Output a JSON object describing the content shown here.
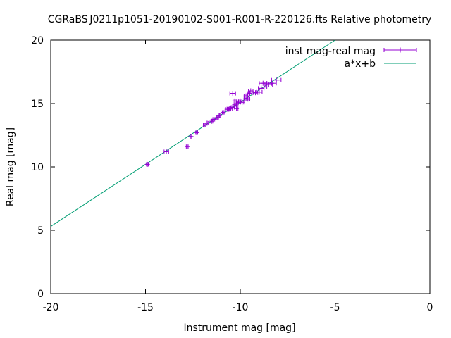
{
  "chart_data": {
    "type": "scatter",
    "title": "CGRaBS J0211p1051-20190102-S001-R001-R-220126.fts Relative photometry",
    "xlabel": "Instrument mag [mag]",
    "ylabel": "Real mag [mag]",
    "xlim": [
      -20,
      0
    ],
    "ylim": [
      0,
      20
    ],
    "xticks": [
      -20,
      -15,
      -10,
      -5,
      0
    ],
    "yticks": [
      0,
      5,
      10,
      15,
      20
    ],
    "xtick_labels": [
      "-20",
      "-15",
      "-10",
      "-5",
      "0"
    ],
    "ytick_labels": [
      "0",
      "5",
      "10",
      "15",
      "20"
    ],
    "grid": false,
    "legend_position": "top-right",
    "series": [
      {
        "name": "inst mag-real mag",
        "kind": "points-with-xerror",
        "color": "#9400d3",
        "points": [
          {
            "x": -14.9,
            "y": 10.2,
            "xerr": 0.05
          },
          {
            "x": -13.9,
            "y": 11.2,
            "xerr": 0.12
          },
          {
            "x": -12.8,
            "y": 11.6,
            "xerr": 0.05
          },
          {
            "x": -12.6,
            "y": 12.4,
            "xerr": 0.05
          },
          {
            "x": -12.3,
            "y": 12.7,
            "xerr": 0.05
          },
          {
            "x": -11.9,
            "y": 13.3,
            "xerr": 0.05
          },
          {
            "x": -11.75,
            "y": 13.45,
            "xerr": 0.05
          },
          {
            "x": -11.5,
            "y": 13.6,
            "xerr": 0.05
          },
          {
            "x": -11.4,
            "y": 13.75,
            "xerr": 0.05
          },
          {
            "x": -11.2,
            "y": 13.9,
            "xerr": 0.05
          },
          {
            "x": -11.1,
            "y": 14.05,
            "xerr": 0.05
          },
          {
            "x": -10.9,
            "y": 14.3,
            "xerr": 0.05
          },
          {
            "x": -10.7,
            "y": 14.55,
            "xerr": 0.08
          },
          {
            "x": -10.6,
            "y": 14.55,
            "xerr": 0.08
          },
          {
            "x": -10.5,
            "y": 14.6,
            "xerr": 0.08
          },
          {
            "x": -10.4,
            "y": 14.7,
            "xerr": 0.08
          },
          {
            "x": -10.3,
            "y": 14.9,
            "xerr": 0.08
          },
          {
            "x": -10.2,
            "y": 15.0,
            "xerr": 0.08
          },
          {
            "x": -10.2,
            "y": 14.6,
            "xerr": 0.08
          },
          {
            "x": -10.3,
            "y": 15.2,
            "xerr": 0.08
          },
          {
            "x": -10.0,
            "y": 15.2,
            "xerr": 0.08
          },
          {
            "x": -9.9,
            "y": 15.1,
            "xerr": 0.08
          },
          {
            "x": -9.7,
            "y": 15.4,
            "xerr": 0.1
          },
          {
            "x": -9.6,
            "y": 15.35,
            "xerr": 0.1
          },
          {
            "x": -9.7,
            "y": 15.6,
            "xerr": 0.1
          },
          {
            "x": -9.5,
            "y": 15.8,
            "xerr": 0.12
          },
          {
            "x": -9.45,
            "y": 16.0,
            "xerr": 0.12
          },
          {
            "x": -9.2,
            "y": 15.85,
            "xerr": 0.12
          },
          {
            "x": -9.0,
            "y": 15.9,
            "xerr": 0.15
          },
          {
            "x": -8.9,
            "y": 16.2,
            "xerr": 0.15
          },
          {
            "x": -8.75,
            "y": 16.3,
            "xerr": 0.15
          },
          {
            "x": -8.8,
            "y": 16.6,
            "xerr": 0.2
          },
          {
            "x": -8.5,
            "y": 16.5,
            "xerr": 0.2
          },
          {
            "x": -8.35,
            "y": 16.6,
            "xerr": 0.25
          },
          {
            "x": -8.1,
            "y": 16.85,
            "xerr": 0.25
          },
          {
            "x": -10.4,
            "y": 15.8,
            "xerr": 0.15
          },
          {
            "x": -10.1,
            "y": 15.1,
            "xerr": 0.08
          }
        ]
      },
      {
        "name": "a*x+b",
        "kind": "line",
        "color": "#009e73",
        "x": [
          -20,
          -5
        ],
        "y": [
          5.3,
          20
        ]
      }
    ]
  }
}
